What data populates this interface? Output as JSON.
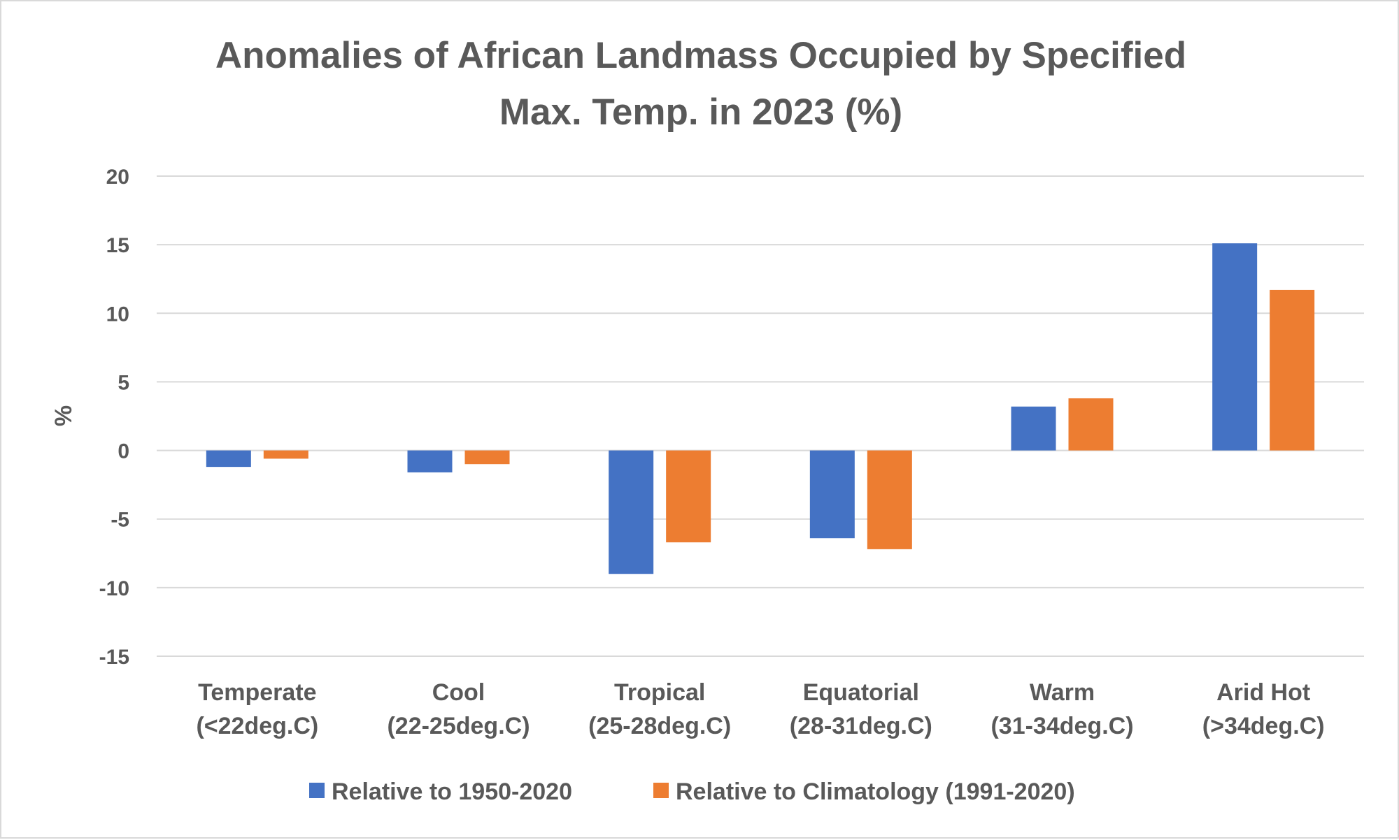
{
  "chart_data": {
    "type": "bar",
    "title_lines": [
      "Anomalies of African Landmass Occupied by Specified",
      "Max. Temp. in 2023 (%)"
    ],
    "xlabel": "",
    "ylabel": "%",
    "ylim": [
      -15,
      20
    ],
    "yticks": [
      20,
      15,
      10,
      5,
      0,
      -5,
      -10,
      -15
    ],
    "grid": true,
    "legend_position": "bottom",
    "categories": [
      [
        "Temperate",
        "(<22deg.C)"
      ],
      [
        "Cool",
        "(22-25deg.C)"
      ],
      [
        "Tropical",
        "(25-28deg.C)"
      ],
      [
        "Equatorial",
        "(28-31deg.C)"
      ],
      [
        "Warm",
        "(31-34deg.C)"
      ],
      [
        "Arid Hot",
        "(>34deg.C)"
      ]
    ],
    "series": [
      {
        "name": "Relative to 1950-2020",
        "color": "#4472c4",
        "values": [
          -1.2,
          -1.6,
          -9.0,
          -6.4,
          3.2,
          15.1
        ]
      },
      {
        "name": "Relative to Climatology (1991-2020)",
        "color": "#ed7d31",
        "values": [
          -0.6,
          -1.0,
          -6.7,
          -7.2,
          3.8,
          11.7
        ]
      }
    ]
  },
  "colors": {
    "gridline": "#d9d9d9",
    "text": "#595959",
    "background": "#ffffff"
  }
}
